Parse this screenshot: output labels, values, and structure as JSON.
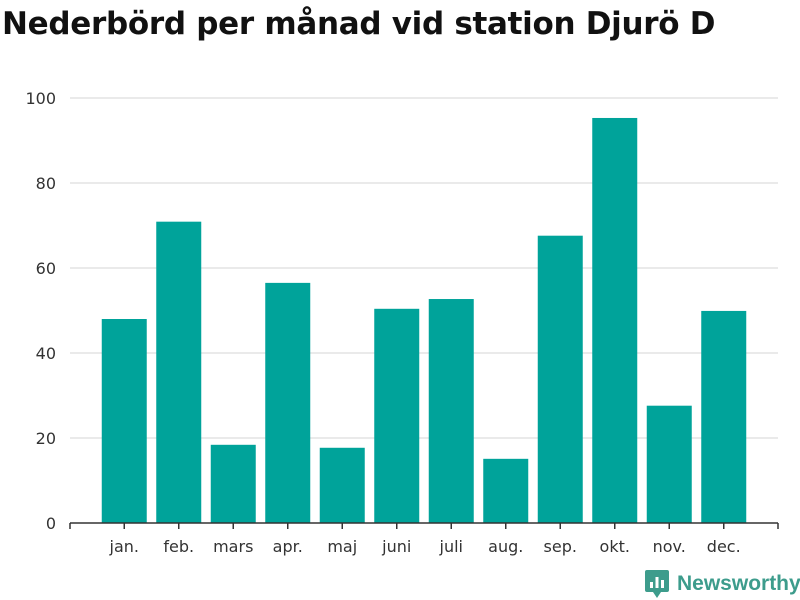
{
  "chart_data": {
    "type": "bar",
    "title": "Nederbörd per månad vid station Djurö D",
    "xlabel": "",
    "ylabel": "",
    "categories": [
      "jan.",
      "feb.",
      "mars",
      "apr.",
      "maj",
      "juni",
      "juli",
      "aug.",
      "sep.",
      "okt.",
      "nov.",
      "dec."
    ],
    "values": [
      48.0,
      70.9,
      18.4,
      56.5,
      17.7,
      50.4,
      52.7,
      15.1,
      67.6,
      95.3,
      27.6,
      49.9
    ],
    "ylim": [
      0,
      100
    ],
    "yticks": [
      0,
      20,
      40,
      60,
      80,
      100
    ],
    "grid": true,
    "bar_color": "#00a39a"
  },
  "brand": {
    "name": "Newsworthy",
    "color": "#3d9c8c",
    "icon": "newsworthy-logo-icon"
  }
}
